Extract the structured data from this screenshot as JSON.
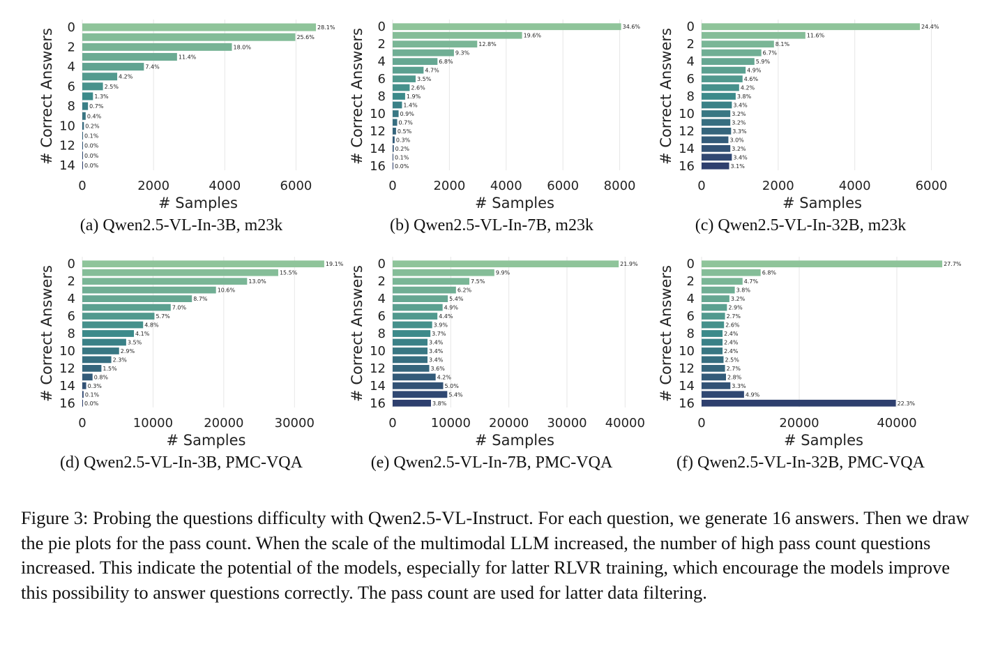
{
  "chart_data": [
    {
      "type": "bar",
      "orientation": "horizontal",
      "subcaption": "(a) Qwen2.5-VL-In-3B, m23k",
      "xlabel": "# Samples",
      "ylabel": "# Correct Answers",
      "xlim": [
        0,
        6500
      ],
      "xticks": [
        0,
        2000,
        4000,
        6000
      ],
      "ytick_labels": [
        "0",
        "2",
        "4",
        "6",
        "8",
        "10",
        "12",
        "14"
      ],
      "categories": [
        0,
        1,
        2,
        3,
        4,
        5,
        6,
        7,
        8,
        9,
        10,
        11,
        12,
        13,
        14
      ],
      "values": [
        6560,
        5980,
        4200,
        2660,
        1730,
        980,
        580,
        300,
        160,
        95,
        45,
        20,
        5,
        3,
        2
      ],
      "labels": [
        "28.1%",
        "25.6%",
        "18.0%",
        "11.4%",
        "7.4%",
        "4.2%",
        "2.5%",
        "1.3%",
        "0.7%",
        "0.4%",
        "0.2%",
        "0.1%",
        "0.0%",
        "0.0%",
        "0.0%"
      ],
      "grid": "vertical"
    },
    {
      "type": "bar",
      "orientation": "horizontal",
      "subcaption": "(b) Qwen2.5-VL-In-7B, m23k",
      "xlabel": "# Samples",
      "ylabel": "# Correct Answers",
      "xlim": [
        0,
        8600
      ],
      "xticks": [
        0,
        2000,
        4000,
        6000,
        8000
      ],
      "ytick_labels": [
        "0",
        "2",
        "4",
        "6",
        "8",
        "10",
        "12",
        "14",
        "16"
      ],
      "categories": [
        0,
        1,
        2,
        3,
        4,
        5,
        6,
        7,
        8,
        9,
        10,
        11,
        12,
        13,
        14,
        15,
        16
      ],
      "values": [
        8050,
        4560,
        2980,
        2160,
        1580,
        1090,
        810,
        600,
        440,
        330,
        210,
        160,
        120,
        70,
        40,
        20,
        5
      ],
      "labels": [
        "34.6%",
        "19.6%",
        "12.8%",
        "9.3%",
        "6.8%",
        "4.7%",
        "3.5%",
        "2.6%",
        "1.9%",
        "1.4%",
        "0.9%",
        "0.7%",
        "0.5%",
        "0.3%",
        "0.2%",
        "0.1%",
        "0.0%"
      ],
      "grid": "vertical"
    },
    {
      "type": "bar",
      "orientation": "horizontal",
      "subcaption": "(c) Qwen2.5-VL-In-32B, m23k",
      "xlabel": "# Samples",
      "ylabel": "# Correct Answers",
      "xlim": [
        0,
        6300
      ],
      "xticks": [
        0,
        2000,
        4000,
        6000
      ],
      "ytick_labels": [
        "0",
        "2",
        "4",
        "6",
        "8",
        "10",
        "12",
        "14",
        "16"
      ],
      "categories": [
        0,
        1,
        2,
        3,
        4,
        5,
        6,
        7,
        8,
        9,
        10,
        11,
        12,
        13,
        14,
        15,
        16
      ],
      "values": [
        5700,
        2710,
        1890,
        1560,
        1380,
        1150,
        1070,
        980,
        890,
        790,
        750,
        750,
        770,
        700,
        750,
        790,
        720
      ],
      "labels": [
        "24.4%",
        "11.6%",
        "8.1%",
        "6.7%",
        "5.9%",
        "4.9%",
        "4.6%",
        "4.2%",
        "3.8%",
        "3.4%",
        "3.2%",
        "3.2%",
        "3.3%",
        "3.0%",
        "3.2%",
        "3.4%",
        "3.1%"
      ],
      "grid": "vertical"
    },
    {
      "type": "bar",
      "orientation": "horizontal",
      "subcaption": "(d) Qwen2.5-VL-In-3B, PMC-VQA",
      "xlabel": "# Samples",
      "ylabel": "# Correct Answers",
      "xlim": [
        0,
        35000
      ],
      "xticks": [
        0,
        10000,
        20000,
        30000
      ],
      "ytick_labels": [
        "0",
        "2",
        "4",
        "6",
        "8",
        "10",
        "12",
        "14",
        "16"
      ],
      "categories": [
        0,
        1,
        2,
        3,
        4,
        5,
        6,
        7,
        8,
        9,
        10,
        11,
        12,
        13,
        14,
        15,
        16
      ],
      "values": [
        34200,
        27700,
        23300,
        18900,
        15500,
        12500,
        10200,
        8600,
        7300,
        6200,
        5200,
        4100,
        2700,
        1450,
        550,
        180,
        20
      ],
      "labels": [
        "19.1%",
        "15.5%",
        "13.0%",
        "10.6%",
        "8.7%",
        "7.0%",
        "5.7%",
        "4.8%",
        "4.1%",
        "3.5%",
        "2.9%",
        "2.3%",
        "1.5%",
        "0.8%",
        "0.3%",
        "0.1%",
        "0.0%"
      ],
      "grid": "vertical"
    },
    {
      "type": "bar",
      "orientation": "horizontal",
      "subcaption": "(e) Qwen2.5-VL-In-7B, PMC-VQA",
      "xlabel": "# Samples",
      "ylabel": "# Correct Answers",
      "xlim": [
        0,
        42000
      ],
      "xticks": [
        0,
        10000,
        20000,
        30000,
        40000
      ],
      "ytick_labels": [
        "0",
        "2",
        "4",
        "6",
        "8",
        "10",
        "12",
        "14",
        "16"
      ],
      "categories": [
        0,
        1,
        2,
        3,
        4,
        5,
        6,
        7,
        8,
        9,
        10,
        11,
        12,
        13,
        14,
        15,
        16
      ],
      "values": [
        38900,
        17500,
        13200,
        10900,
        9500,
        8600,
        7700,
        6800,
        6500,
        6000,
        6000,
        6000,
        6300,
        7400,
        8700,
        9400,
        6600
      ],
      "labels": [
        "21.9%",
        "9.9%",
        "7.5%",
        "6.2%",
        "5.4%",
        "4.9%",
        "4.4%",
        "3.9%",
        "3.7%",
        "3.4%",
        "3.4%",
        "3.4%",
        "3.6%",
        "4.2%",
        "5.0%",
        "5.4%",
        "3.8%"
      ],
      "grid": "vertical"
    },
    {
      "type": "bar",
      "orientation": "horizontal",
      "subcaption": "(f) Qwen2.5-VL-In-32B, PMC-VQA",
      "xlabel": "# Samples",
      "ylabel": "# Correct Answers",
      "xlim": [
        0,
        50000
      ],
      "xticks": [
        0,
        20000,
        40000
      ],
      "ytick_labels": [
        "0",
        "2",
        "4",
        "6",
        "8",
        "10",
        "12",
        "14",
        "16"
      ],
      "categories": [
        0,
        1,
        2,
        3,
        4,
        5,
        6,
        7,
        8,
        9,
        10,
        11,
        12,
        13,
        14,
        15,
        16
      ],
      "values": [
        49300,
        12100,
        8400,
        6800,
        5700,
        5200,
        4800,
        4600,
        4300,
        4300,
        4300,
        4500,
        4800,
        5000,
        5900,
        8700,
        39800
      ],
      "labels": [
        "27.7%",
        "6.8%",
        "4.7%",
        "3.8%",
        "3.2%",
        "2.9%",
        "2.7%",
        "2.6%",
        "2.4%",
        "2.4%",
        "2.4%",
        "2.5%",
        "2.7%",
        "2.8%",
        "3.3%",
        "4.9%",
        "22.3%"
      ],
      "grid": "vertical"
    }
  ],
  "caption": {
    "label": "Figure 3:",
    "text": "Probing the questions difficulty with Qwen2.5-VL-Instruct. For each question, we generate 16 answers. Then we draw the pie plots for the pass count. When the scale of the multimodal LLM increased, the number of high pass count questions increased. This indicate the potential of the models, especially for latter RLVR training, which encourage the models improve this possibility to answer questions correctly. The pass count are used for latter data filtering."
  },
  "colors": {
    "palette_start": "#8fc49a",
    "palette_mid": "#3c8a8a",
    "palette_end": "#2e3f6e",
    "grid": "#e6e6e6"
  }
}
